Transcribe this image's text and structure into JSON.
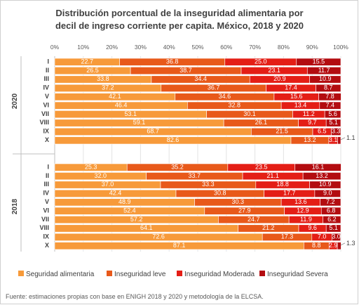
{
  "title_lines": [
    "Distribución porcentual de la inseguridad alimentaria por",
    "decil de ingreso corriente per capita. México, 2018 y 2020"
  ],
  "footer": "Fuente: estimaciones propias con base en ENIGH 2018 y 2020 y metodología de la ELCSA.",
  "chart_data": {
    "type": "bar",
    "orientation": "horizontal",
    "stacked": "percent",
    "x_ticks": [
      "0%",
      "10%",
      "20%",
      "30%",
      "40%",
      "50%",
      "60%",
      "70%",
      "80%",
      "90%",
      "100%"
    ],
    "xlim": [
      0,
      100
    ],
    "legend_position": "bottom",
    "series_names": [
      "Seguridad alimentaria",
      "Inseguridad leve",
      "Inseguridad Moderada",
      "Inseguridad Severa"
    ],
    "colors": [
      "#F79A3A",
      "#E8591A",
      "#E41E16",
      "#B30C10"
    ],
    "groups": [
      {
        "year": "2020",
        "categories": [
          "I",
          "II",
          "III",
          "IV",
          "V",
          "VI",
          "VII",
          "VIII",
          "IX",
          "X"
        ],
        "values": [
          [
            22.7,
            36.8,
            25.0,
            15.5
          ],
          [
            26.5,
            38.7,
            23.1,
            11.7
          ],
          [
            33.8,
            34.4,
            20.9,
            10.9
          ],
          [
            37.2,
            36.7,
            17.4,
            8.7
          ],
          [
            42.1,
            34.6,
            15.6,
            7.8
          ],
          [
            46.4,
            32.8,
            13.4,
            7.4
          ],
          [
            53.1,
            30.1,
            11.2,
            5.6
          ],
          [
            59.1,
            26.1,
            9.7,
            5.1
          ],
          [
            68.7,
            21.5,
            6.5,
            3.3
          ],
          [
            82.6,
            13.2,
            3.1,
            1.1
          ]
        ],
        "outside_label": "1.1"
      },
      {
        "year": "2018",
        "categories": [
          "I",
          "II",
          "III",
          "IV",
          "V",
          "VI",
          "VII",
          "VIII",
          "IX",
          "X"
        ],
        "values": [
          [
            25.3,
            35.2,
            23.5,
            16.1
          ],
          [
            32.0,
            33.7,
            21.1,
            13.2
          ],
          [
            37.0,
            33.3,
            18.8,
            10.9
          ],
          [
            42.4,
            30.8,
            17.7,
            9.0
          ],
          [
            48.9,
            30.3,
            13.6,
            7.2
          ],
          [
            52.4,
            27.9,
            12.9,
            6.8
          ],
          [
            57.2,
            24.7,
            11.9,
            6.2
          ],
          [
            64.1,
            21.2,
            9.6,
            5.1
          ],
          [
            72.6,
            17.3,
            7.0,
            3.0
          ],
          [
            87.1,
            8.8,
            2.9,
            1.3
          ]
        ],
        "outside_label": "1.3"
      }
    ]
  }
}
